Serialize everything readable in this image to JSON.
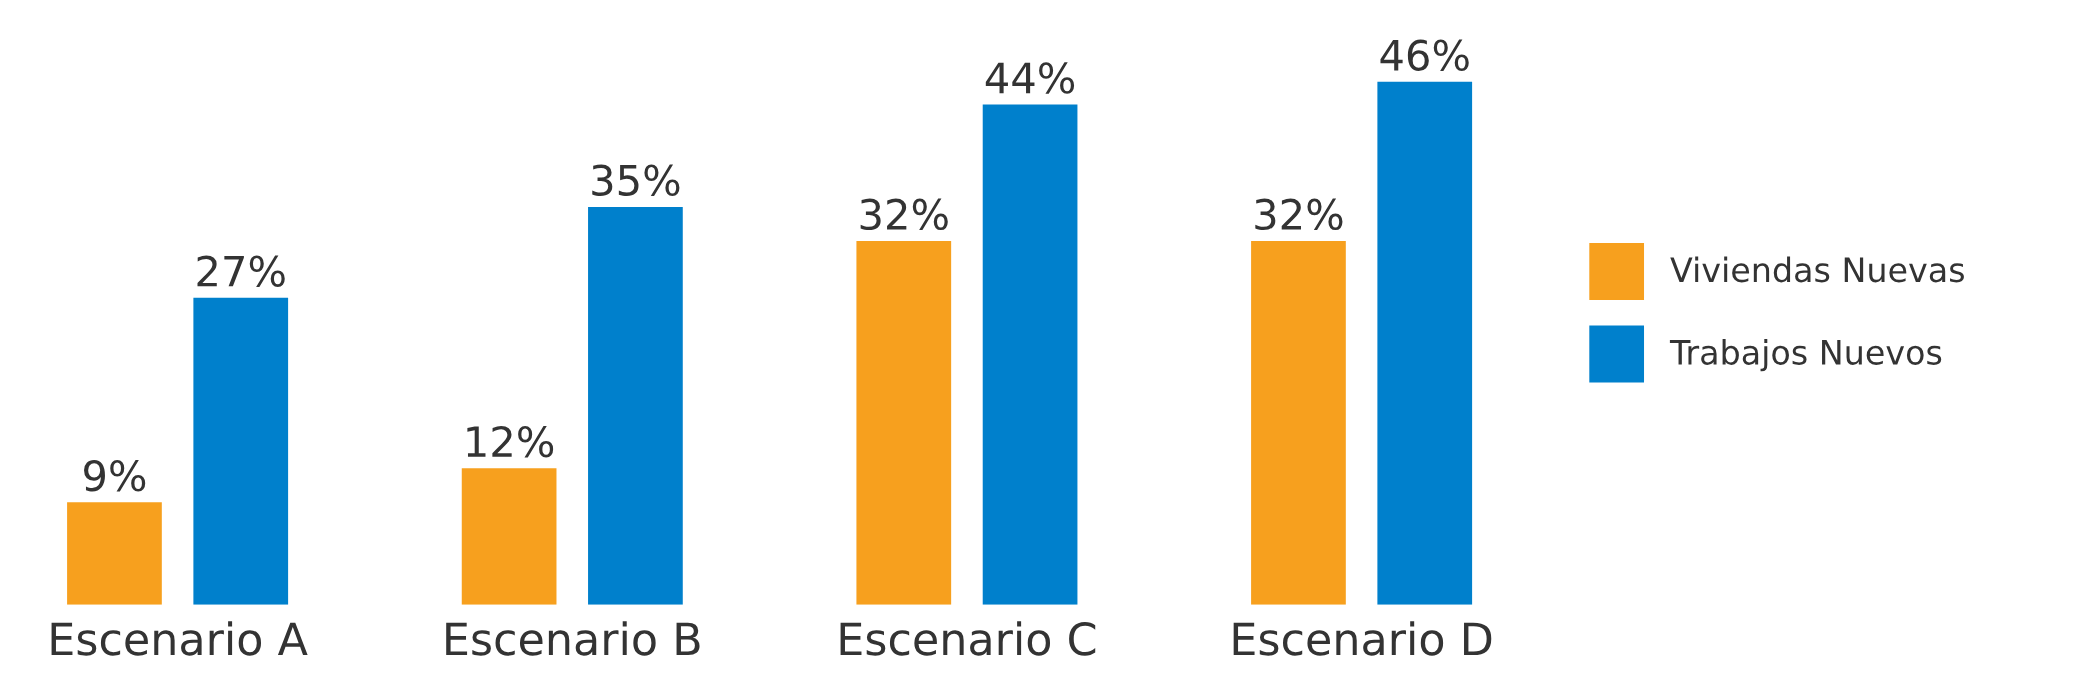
{
  "chart_data": {
    "type": "bar",
    "categories": [
      "Escenario A",
      "Escenario B",
      "Escenario C",
      "Escenario D"
    ],
    "series": [
      {
        "name": "Viviendas Nuevas",
        "color": "#f7a01e",
        "values": [
          9,
          12,
          32,
          32
        ],
        "value_labels": [
          "9%",
          "12%",
          "32%",
          "32%"
        ]
      },
      {
        "name": "Trabajos Nuevos",
        "color": "#0080cc",
        "values": [
          27,
          35,
          44,
          46
        ],
        "value_labels": [
          "27%",
          "35%",
          "44%",
          "46%"
        ]
      }
    ],
    "legend": "right"
  }
}
